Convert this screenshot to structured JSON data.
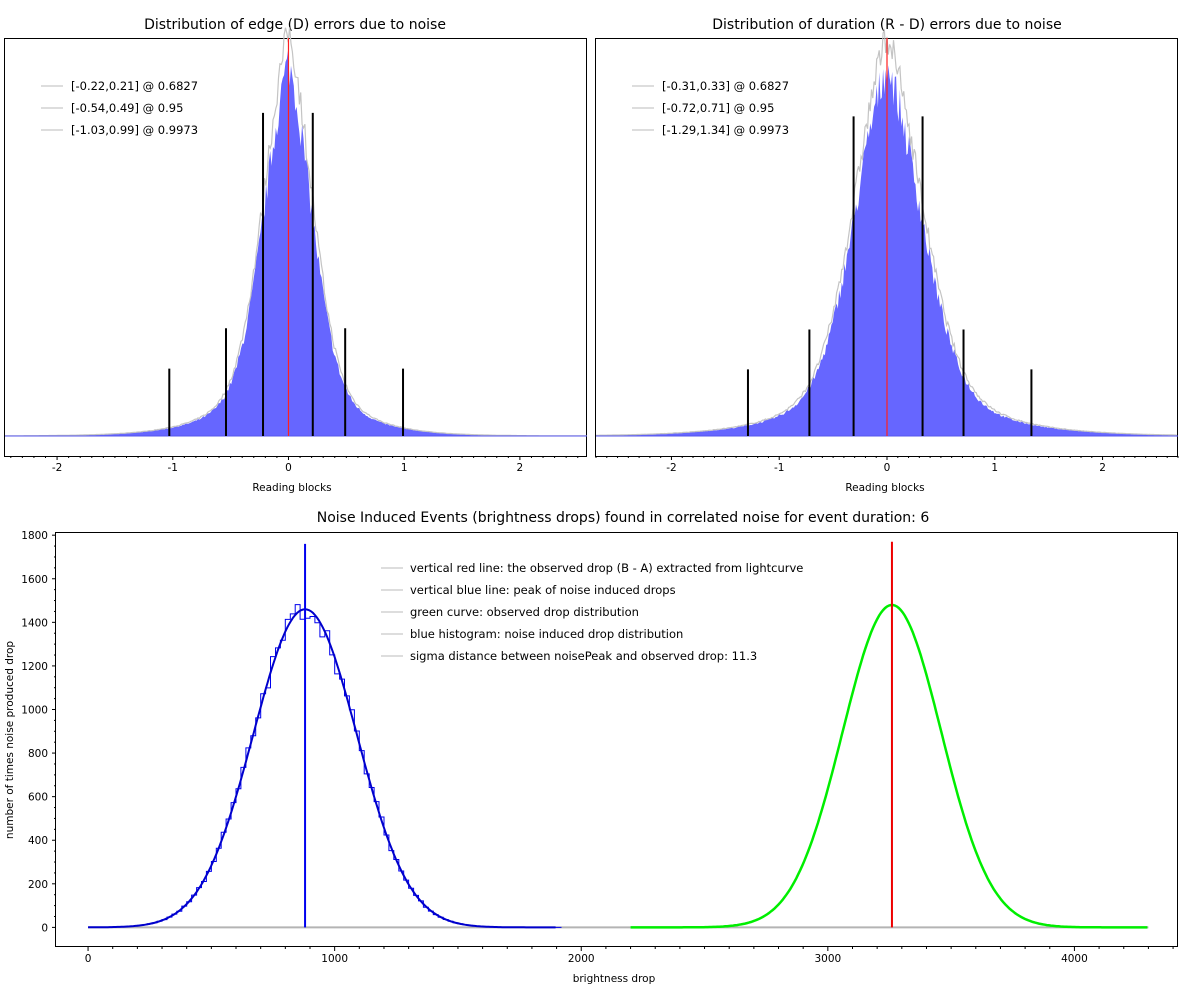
{
  "chart_data": [
    {
      "type": "histogram",
      "title": "Distribution of edge (D) errors due to noise",
      "xlabel": "Reading blocks",
      "xlim": [
        -2.45,
        2.58
      ],
      "x_ticks": [
        -2,
        -1,
        0,
        1,
        2
      ],
      "center_line_x": 0,
      "histogram_shape": {
        "sigma_left": 0.22,
        "sigma_right": 0.21
      },
      "legend": [
        {
          "label": "[-0.22,0.21] @ 0.6827"
        },
        {
          "label": "[-0.54,0.49] @ 0.95"
        },
        {
          "label": "[-1.03,0.99] @ 0.9973"
        }
      ],
      "confidence_bars": [
        {
          "level": 0.6827,
          "lo": -0.22,
          "hi": 0.21,
          "relative_height": 0.72
        },
        {
          "level": 0.95,
          "lo": -0.54,
          "hi": 0.49,
          "relative_height": 0.24
        },
        {
          "level": 0.9973,
          "lo": -1.03,
          "hi": 0.99,
          "relative_height": 0.15
        }
      ],
      "colors": {
        "bars": "#6666ff",
        "outline": "#c4c4c4",
        "center": "#ff2020",
        "ci": "#000000",
        "baseline": "#5555ee"
      }
    },
    {
      "type": "histogram",
      "title": "Distribution of duration (R - D) errors due to noise",
      "xlabel": "Reading blocks",
      "xlim": [
        -2.7,
        2.7
      ],
      "x_ticks": [
        -2,
        -1,
        0,
        1,
        2
      ],
      "center_line_x": 0,
      "histogram_shape": {
        "sigma_left": 0.31,
        "sigma_right": 0.33
      },
      "legend": [
        {
          "label": "[-0.31,0.33] @ 0.6827"
        },
        {
          "label": "[-0.72,0.71] @ 0.95"
        },
        {
          "label": "[-1.29,1.34] @ 0.9973"
        }
      ],
      "confidence_bars": [
        {
          "level": 0.6827,
          "lo": -0.31,
          "hi": 0.33,
          "relative_height": 0.72
        },
        {
          "level": 0.95,
          "lo": -0.72,
          "hi": 0.71,
          "relative_height": 0.24
        },
        {
          "level": 0.9973,
          "lo": -1.29,
          "hi": 1.34,
          "relative_height": 0.15
        }
      ],
      "colors": {
        "bars": "#6666ff",
        "outline": "#c4c4c4",
        "center": "#ff2020",
        "ci": "#000000",
        "baseline": "#5555ee"
      }
    },
    {
      "type": "line",
      "title": "Noise Induced Events (brightness drops) found in correlated noise for event duration: 6",
      "xlabel": "brightness drop",
      "ylabel": "number of times noise produced drop",
      "xlim": [
        -130,
        4420
      ],
      "ylim": [
        -90,
        1810
      ],
      "x_ticks": [
        0,
        1000,
        2000,
        3000,
        4000
      ],
      "y_ticks": [
        0,
        200,
        400,
        600,
        800,
        1000,
        1200,
        1400,
        1600,
        1800
      ],
      "legend": [
        {
          "label": "vertical red line: the observed drop (B - A) extracted from lightcurve"
        },
        {
          "label": "vertical blue line: peak of noise induced drops"
        },
        {
          "label": "green curve: observed drop distribution"
        },
        {
          "label": "blue histogram: noise induced drop distribution"
        },
        {
          "label": "sigma distance between noisePeak and observed drop: 11.3"
        }
      ],
      "series": [
        {
          "name": "blue histogram: noise induced drop distribution",
          "peak_x": 880,
          "peak_y": 1460,
          "sigma": 210,
          "x_range": [
            0,
            1900
          ]
        },
        {
          "name": "green curve: observed drop distribution",
          "peak_x": 3260,
          "peak_y": 1480,
          "sigma": 200,
          "x_range": [
            2200,
            4300
          ]
        }
      ],
      "vertical_lines": [
        {
          "name": "vertical blue line: peak of noise induced drops",
          "x": 880,
          "y_top": 1760,
          "color": "#0000ee"
        },
        {
          "name": "vertical red line: the observed drop (B - A) extracted from lightcurve",
          "x": 3260,
          "y_top": 1770,
          "color": "#ee0000"
        }
      ],
      "baseline": {
        "y": 0,
        "x_range": [
          0,
          4300
        ],
        "color": "#b4b4b4"
      },
      "colors": {
        "hist": "#0000ee",
        "fit": "#0000cc",
        "green": "#00ee00"
      }
    }
  ]
}
